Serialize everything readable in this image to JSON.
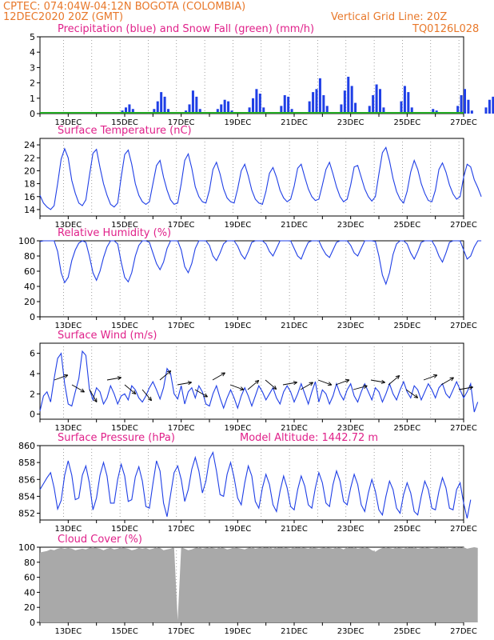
{
  "header": {
    "line1": "CPTEC:   074:04W-04:12N   BOGOTA (COLOMBIA)",
    "line2": "12DEC2020 20Z (GMT)",
    "grid_note": "Vertical Grid Line: 20Z",
    "model": "TQ0126L028"
  },
  "colors": {
    "header": "#e8782a",
    "title": "#e0218a",
    "series": "#1f3fe6",
    "snow": "#22aa22",
    "cloud": "#a9a9a9",
    "grid": "#777777"
  },
  "chart_data": [
    {
      "id": "precip",
      "type": "bar",
      "title": "Precipitation (blue) and Snow Fall (green) (mm/h)",
      "ylim": [
        0,
        5
      ],
      "yticks": [
        0,
        1,
        2,
        3,
        4,
        5
      ],
      "x_start_day": 12.0,
      "step_hours": 3,
      "x_ticks": [
        "13DEC",
        "15DEC",
        "17DEC",
        "19DEC",
        "21DEC",
        "23DEC",
        "25DEC",
        "27DEC"
      ],
      "series": [
        {
          "values": [
            0,
            0,
            0,
            0.1,
            0,
            0,
            0,
            0,
            0,
            0.1,
            0,
            0,
            0.1,
            0,
            0,
            0,
            0,
            0,
            0.1,
            0,
            0,
            0,
            0,
            0.2,
            0.4,
            0.6,
            0.3,
            0.1,
            0,
            0,
            0,
            0,
            0.3,
            0.8,
            1.4,
            1.1,
            0.3,
            0,
            0,
            0,
            0,
            0.2,
            0.6,
            1.5,
            1.1,
            0.3,
            0,
            0,
            0,
            0,
            0.3,
            0.6,
            0.9,
            0.8,
            0.2,
            0,
            0,
            0,
            0,
            0.4,
            1.0,
            1.6,
            1.3,
            0.4,
            0,
            0,
            0,
            0,
            0.5,
            1.2,
            1.1,
            0.3,
            0,
            0,
            0,
            0,
            0.8,
            1.4,
            1.6,
            2.3,
            1.2,
            0.5,
            0.1,
            0,
            0,
            0.6,
            1.5,
            2.4,
            1.8,
            0.7,
            0.1,
            0,
            0,
            0.5,
            1.2,
            1.9,
            1.6,
            0.4,
            0,
            0,
            0,
            0,
            0.8,
            1.8,
            1.4,
            0.4,
            0,
            0,
            0,
            0,
            0.1,
            0.3,
            0.2,
            0,
            0,
            0,
            0,
            0,
            0.5,
            1.2,
            1.6,
            0.9,
            0.2,
            0,
            0,
            0,
            0.4,
            0.9,
            1.1,
            0.5,
            0,
            0,
            0,
            0,
            0.6,
            1.6,
            1.9,
            2.1,
            0.8,
            0.1,
            0
          ],
          "snow": 0
        }
      ]
    },
    {
      "id": "temp",
      "type": "line",
      "title": "Surface Temperature (nC)",
      "ylim": [
        13,
        25
      ],
      "yticks": [
        14,
        16,
        18,
        20,
        22,
        24
      ],
      "x_start_day": 12.0,
      "step_hours": 3,
      "x_ticks": [
        "13DEC",
        "15DEC",
        "17DEC",
        "19DEC",
        "21DEC",
        "23DEC",
        "25DEC",
        "27DEC"
      ],
      "series": [
        {
          "values": [
            16.2,
            15.0,
            14.4,
            14.0,
            14.6,
            18.0,
            21.8,
            23.4,
            22.0,
            18.5,
            16.5,
            15.0,
            14.6,
            15.5,
            19.2,
            22.7,
            23.3,
            20.5,
            18.0,
            16.2,
            14.8,
            14.4,
            15.0,
            19.0,
            22.5,
            23.2,
            21.0,
            18.0,
            16.2,
            15.2,
            14.8,
            15.2,
            18.0,
            20.8,
            21.6,
            19.0,
            17.0,
            15.5,
            14.8,
            15.0,
            18.0,
            21.6,
            22.6,
            20.4,
            17.5,
            16.0,
            15.2,
            15.0,
            17.0,
            20.2,
            21.3,
            19.5,
            17.2,
            15.8,
            15.2,
            15.0,
            17.2,
            20.0,
            21.0,
            19.2,
            17.0,
            15.6,
            15.0,
            14.8,
            16.8,
            19.6,
            20.5,
            19.0,
            17.0,
            15.8,
            15.2,
            15.6,
            17.6,
            20.4,
            21.0,
            19.0,
            17.2,
            16.0,
            15.4,
            15.6,
            17.8,
            20.2,
            21.3,
            19.5,
            17.5,
            16.0,
            15.2,
            15.6,
            17.8,
            20.6,
            20.8,
            19.0,
            17.2,
            16.0,
            15.3,
            16.0,
            19.5,
            22.8,
            23.6,
            21.5,
            18.8,
            16.8,
            15.6,
            15.0,
            16.8,
            19.8,
            21.6,
            20.2,
            18.0,
            16.5,
            15.4,
            15.2,
            17.0,
            20.2,
            21.2,
            19.8,
            17.8,
            16.4,
            15.6,
            16.0,
            19.0,
            21.0,
            20.6,
            18.6,
            17.4,
            16.0
          ],
          "name": ""
        }
      ]
    },
    {
      "id": "rh",
      "type": "line",
      "title": "Relative Humidity (%)",
      "ylim": [
        0,
        100
      ],
      "yticks": [
        0,
        20,
        40,
        60,
        80,
        100
      ],
      "x_start_day": 12.0,
      "step_hours": 3,
      "x_ticks": [
        "13DEC",
        "15DEC",
        "17DEC",
        "19DEC",
        "21DEC",
        "23DEC",
        "25DEC",
        "27DEC"
      ],
      "series": [
        {
          "values": [
            99,
            100,
            100,
            100,
            100,
            86,
            58,
            45,
            52,
            74,
            88,
            97,
            100,
            98,
            80,
            58,
            48,
            60,
            78,
            92,
            100,
            100,
            96,
            72,
            52,
            46,
            58,
            80,
            94,
            100,
            100,
            98,
            84,
            70,
            62,
            72,
            90,
            100,
            100,
            100,
            88,
            66,
            58,
            70,
            90,
            100,
            100,
            100,
            94,
            80,
            74,
            84,
            96,
            100,
            100,
            100,
            93,
            82,
            76,
            86,
            98,
            100,
            100,
            100,
            96,
            86,
            80,
            90,
            100,
            100,
            100,
            100,
            90,
            80,
            76,
            88,
            98,
            100,
            100,
            100,
            90,
            82,
            78,
            88,
            98,
            100,
            100,
            100,
            94,
            84,
            80,
            90,
            100,
            100,
            100,
            99,
            80,
            55,
            43,
            58,
            82,
            96,
            100,
            100,
            96,
            84,
            76,
            86,
            98,
            100,
            100,
            100,
            92,
            80,
            72,
            84,
            98,
            100,
            100,
            100,
            88,
            76,
            80,
            92,
            100,
            100
          ],
          "name": ""
        }
      ]
    },
    {
      "id": "wind",
      "type": "line",
      "title": "Surface Wind (m/s)",
      "ylim": [
        -0.5,
        7
      ],
      "yticks": [
        0,
        2,
        4,
        6
      ],
      "x_start_day": 12.0,
      "step_hours": 3,
      "x_ticks": [
        "13DEC",
        "15DEC",
        "17DEC",
        "19DEC",
        "21DEC",
        "23DEC",
        "25DEC",
        "27DEC"
      ],
      "series": [
        {
          "values": [
            0.3,
            1.8,
            2.2,
            1.2,
            3.5,
            5.5,
            6.0,
            3.0,
            1.0,
            0.8,
            2.2,
            3.5,
            6.2,
            5.8,
            2.5,
            1.4,
            2.6,
            2.2,
            1.0,
            1.6,
            2.8,
            2.0,
            1.0,
            1.8,
            2.0,
            1.4,
            2.8,
            2.4,
            1.6,
            1.2,
            1.8,
            2.6,
            3.2,
            2.4,
            1.5,
            2.6,
            4.5,
            4.0,
            2.0,
            1.5,
            2.8,
            1.0,
            2.2,
            2.6,
            1.6,
            2.8,
            2.2,
            1.0,
            0.8,
            2.0,
            2.8,
            1.6,
            0.6,
            1.6,
            2.4,
            1.6,
            0.6,
            1.8,
            2.6,
            1.8,
            0.8,
            1.8,
            2.8,
            2.2,
            1.4,
            2.0,
            2.6,
            1.6,
            1.0,
            2.2,
            2.8,
            2.2,
            1.2,
            2.0,
            3.0,
            2.0,
            1.0,
            2.2,
            3.2,
            1.2,
            2.4,
            2.0,
            1.0,
            1.8,
            3.0,
            2.0,
            1.4,
            2.4,
            3.0,
            1.8,
            1.2,
            2.2,
            3.0,
            2.2,
            1.4,
            2.6,
            2.2,
            1.2,
            2.0,
            3.0,
            2.0,
            1.4,
            2.4,
            3.2,
            2.2,
            1.6,
            2.8,
            2.4,
            1.4,
            2.2,
            3.0,
            2.4,
            1.6,
            2.6,
            3.0,
            2.0,
            1.6,
            2.4,
            3.2,
            2.4,
            1.6,
            2.2,
            3.0,
            0.2,
            1.2
          ],
          "name": ""
        }
      ]
    },
    {
      "id": "pressure",
      "type": "line",
      "title": "Surface Pressure (hPa)",
      "subtitle": "Model Altitude: 1442.72 m",
      "ylim": [
        851.2,
        860
      ],
      "yticks": [
        852,
        854,
        856,
        858,
        860
      ],
      "x_start_day": 12.0,
      "step_hours": 3,
      "x_ticks": [
        "13DEC",
        "15DEC",
        "17DEC",
        "19DEC",
        "21DEC",
        "23DEC",
        "25DEC",
        "27DEC"
      ],
      "series": [
        {
          "values": [
            854.8,
            855.5,
            856.2,
            856.8,
            855.0,
            852.5,
            853.5,
            856.5,
            858.2,
            856.5,
            853.6,
            853.8,
            856.5,
            857.6,
            855.6,
            852.4,
            853.8,
            856.5,
            858.0,
            856.4,
            853.2,
            853.2,
            856.0,
            857.8,
            856.4,
            853.4,
            853.6,
            856.3,
            857.5,
            855.8,
            852.8,
            852.6,
            855.5,
            858.2,
            857.0,
            853.2,
            851.6,
            854.2,
            856.8,
            857.6,
            856.0,
            853.4,
            854.8,
            857.2,
            858.6,
            857.0,
            854.4,
            855.8,
            858.4,
            859.2,
            857.0,
            854.2,
            854.0,
            856.6,
            858.0,
            856.2,
            853.8,
            853.0,
            855.6,
            857.6,
            856.4,
            853.4,
            852.6,
            855.0,
            856.6,
            855.4,
            853.0,
            852.2,
            854.6,
            856.4,
            855.0,
            852.8,
            852.4,
            854.8,
            856.4,
            855.2,
            853.0,
            852.6,
            855.0,
            856.8,
            855.6,
            853.2,
            852.8,
            855.4,
            857.0,
            855.8,
            853.4,
            853.0,
            855.0,
            856.6,
            855.4,
            853.0,
            852.2,
            854.4,
            856.0,
            854.6,
            852.4,
            851.8,
            854.0,
            855.8,
            854.8,
            852.6,
            852.0,
            854.2,
            855.6,
            854.4,
            852.2,
            851.8,
            854.0,
            855.8,
            854.8,
            852.6,
            852.4,
            854.6,
            856.2,
            855.0,
            852.6,
            852.4,
            854.8,
            855.6,
            853.2,
            851.4,
            853.6
          ],
          "name": ""
        }
      ]
    },
    {
      "id": "cloud",
      "type": "area",
      "title": "Cloud Cover (%)",
      "ylim": [
        0,
        100
      ],
      "yticks": [
        0,
        20,
        40,
        60,
        80,
        100
      ],
      "x_start_day": 12.0,
      "step_hours": 3,
      "x_ticks": [
        "13DEC",
        "15DEC",
        "17DEC",
        "19DEC",
        "21DEC",
        "23DEC",
        "25DEC",
        "27DEC"
      ],
      "series": [
        {
          "values": [
            93,
            94,
            95,
            97,
            96,
            98,
            99,
            98,
            99,
            98,
            96,
            97,
            98,
            97,
            99,
            100,
            99,
            98,
            96,
            98,
            99,
            97,
            98,
            100,
            99,
            98,
            96,
            97,
            99,
            98,
            99,
            97,
            98,
            100,
            99,
            96,
            97,
            98,
            100,
            3,
            100,
            98,
            96,
            97,
            99,
            100,
            98,
            99,
            100,
            99,
            98,
            100,
            99,
            97,
            98,
            100,
            99,
            98,
            97,
            99,
            100,
            98,
            99,
            100,
            99,
            100,
            98,
            100,
            99,
            100,
            99,
            98,
            100,
            99,
            100,
            99,
            98,
            100,
            99,
            98,
            99,
            100,
            99,
            98,
            100,
            99,
            97,
            100,
            99,
            100,
            98,
            99,
            100,
            99,
            96,
            94,
            97,
            99,
            100,
            99,
            98,
            100,
            99,
            98,
            100,
            99,
            100,
            98,
            99,
            100,
            99,
            98,
            99,
            100,
            99,
            100,
            98,
            99,
            100,
            99,
            100,
            98,
            99,
            100,
            99
          ],
          "name": ""
        }
      ]
    }
  ]
}
